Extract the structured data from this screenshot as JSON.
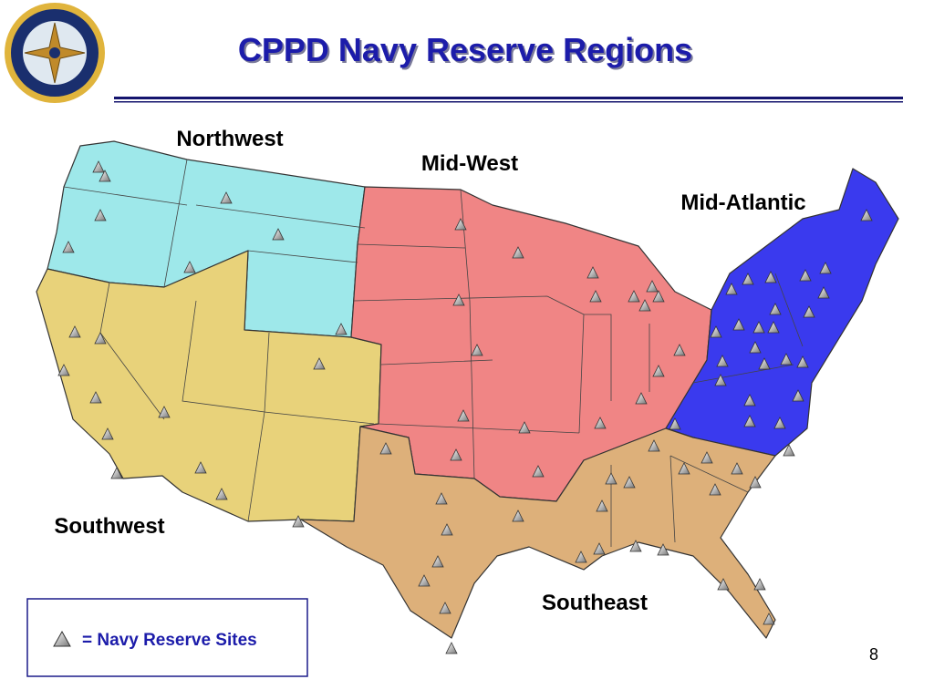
{
  "header": {
    "title": "CPPD Navy Reserve Regions"
  },
  "regions": [
    {
      "label": "Northwest"
    },
    {
      "label": "Mid-West"
    },
    {
      "label": "Mid-Atlantic"
    },
    {
      "label": "Southwest"
    },
    {
      "label": "Southeast"
    }
  ],
  "legend": {
    "label": "= Navy Reserve Sites"
  },
  "page_number": "8"
}
